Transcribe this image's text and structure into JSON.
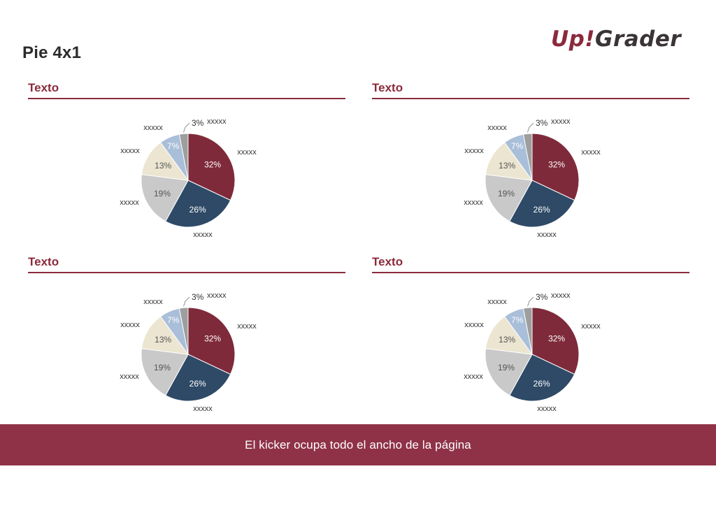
{
  "page": {
    "title": "Pie 4x1"
  },
  "logo": {
    "part1": "Up",
    "part2": "!",
    "part3": "Grader"
  },
  "kicker": {
    "text": "El kicker ocupa todo el ancho de la página"
  },
  "colors": {
    "brand": "#8b2a3c",
    "kicker_bg": "#8f3247",
    "text": "#333333"
  },
  "panels": [
    {
      "title": "Texto"
    },
    {
      "title": "Texto"
    },
    {
      "title": "Texto"
    },
    {
      "title": "Texto"
    }
  ],
  "chart_data": [
    {
      "type": "pie",
      "title": "",
      "slices": [
        {
          "label": "xxxxx",
          "value": 32,
          "value_label": "32%",
          "color": "#7e2a3a"
        },
        {
          "label": "xxxxx",
          "value": 26,
          "value_label": "26%",
          "color": "#2e4a67"
        },
        {
          "label": "xxxxx",
          "value": 19,
          "value_label": "19%",
          "color": "#c9c9c9"
        },
        {
          "label": "xxxxx",
          "value": 13,
          "value_label": "13%",
          "color": "#ebe5d1"
        },
        {
          "label": "xxxxx",
          "value": 7,
          "value_label": "7%",
          "color": "#a9bed8"
        },
        {
          "label": "xxxxx",
          "value": 3,
          "value_label": "3%",
          "color": "#9e9e9e"
        }
      ]
    },
    {
      "type": "pie",
      "title": "",
      "slices": [
        {
          "label": "xxxxx",
          "value": 32,
          "value_label": "32%",
          "color": "#7e2a3a"
        },
        {
          "label": "xxxxx",
          "value": 26,
          "value_label": "26%",
          "color": "#2e4a67"
        },
        {
          "label": "xxxxx",
          "value": 19,
          "value_label": "19%",
          "color": "#c9c9c9"
        },
        {
          "label": "xxxxx",
          "value": 13,
          "value_label": "13%",
          "color": "#ebe5d1"
        },
        {
          "label": "xxxxx",
          "value": 7,
          "value_label": "7%",
          "color": "#a9bed8"
        },
        {
          "label": "xxxxx",
          "value": 3,
          "value_label": "3%",
          "color": "#9e9e9e"
        }
      ]
    },
    {
      "type": "pie",
      "title": "",
      "slices": [
        {
          "label": "xxxxx",
          "value": 32,
          "value_label": "32%",
          "color": "#7e2a3a"
        },
        {
          "label": "xxxxx",
          "value": 26,
          "value_label": "26%",
          "color": "#2e4a67"
        },
        {
          "label": "xxxxx",
          "value": 19,
          "value_label": "19%",
          "color": "#c9c9c9"
        },
        {
          "label": "xxxxx",
          "value": 13,
          "value_label": "13%",
          "color": "#ebe5d1"
        },
        {
          "label": "xxxxx",
          "value": 7,
          "value_label": "7%",
          "color": "#a9bed8"
        },
        {
          "label": "xxxxx",
          "value": 3,
          "value_label": "3%",
          "color": "#9e9e9e"
        }
      ]
    },
    {
      "type": "pie",
      "title": "",
      "slices": [
        {
          "label": "xxxxx",
          "value": 32,
          "value_label": "32%",
          "color": "#7e2a3a"
        },
        {
          "label": "xxxxx",
          "value": 26,
          "value_label": "26%",
          "color": "#2e4a67"
        },
        {
          "label": "xxxxx",
          "value": 19,
          "value_label": "19%",
          "color": "#c9c9c9"
        },
        {
          "label": "xxxxx",
          "value": 13,
          "value_label": "13%",
          "color": "#ebe5d1"
        },
        {
          "label": "xxxxx",
          "value": 7,
          "value_label": "7%",
          "color": "#a9bed8"
        },
        {
          "label": "xxxxx",
          "value": 3,
          "value_label": "3%",
          "color": "#9e9e9e"
        }
      ]
    }
  ]
}
